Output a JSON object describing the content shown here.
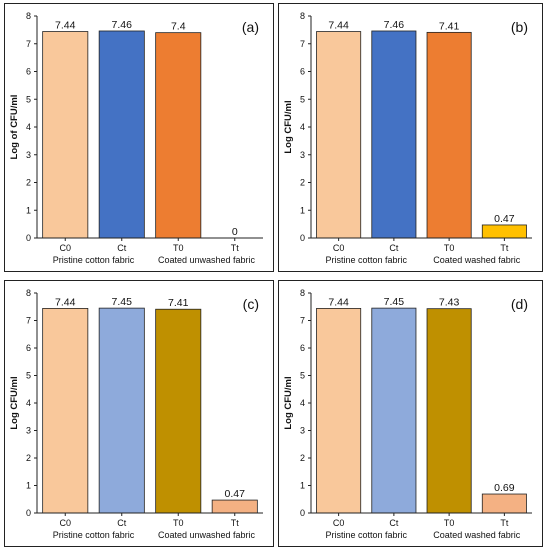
{
  "chart_data": [
    {
      "type": "bar",
      "panel_label": "(a)",
      "ylabel": "Log of CFU/ml",
      "categories": [
        "C0",
        "Ct",
        "T0",
        "Tt"
      ],
      "values": [
        7.44,
        7.46,
        7.4,
        0
      ],
      "value_labels": [
        "7.44",
        "7.46",
        "7.4",
        "0"
      ],
      "colors": [
        "#f9c89b",
        "#4472c4",
        "#ed7d31",
        "#ed7d31"
      ],
      "ylim": [
        0,
        8
      ],
      "yticks": [
        "0",
        "1",
        "2",
        "3",
        "4",
        "5",
        "6",
        "7",
        "8"
      ],
      "group_labels": [
        "Pristine cotton fabric",
        "Coated unwashed fabric"
      ],
      "grid": false
    },
    {
      "type": "bar",
      "panel_label": "(b)",
      "ylabel": "Log CFU/ml",
      "categories": [
        "C0",
        "Ct",
        "T0",
        "Tt"
      ],
      "values": [
        7.44,
        7.46,
        7.41,
        0.47
      ],
      "value_labels": [
        "7.44",
        "7.46",
        "7.41",
        "0.47"
      ],
      "colors": [
        "#f9c89b",
        "#4472c4",
        "#ed7d31",
        "#ffc000"
      ],
      "ylim": [
        0,
        8
      ],
      "yticks": [
        "0",
        "1",
        "2",
        "3",
        "4",
        "5",
        "6",
        "7",
        "8"
      ],
      "group_labels": [
        "Pristine cotton fabric",
        "Coated washed fabric"
      ],
      "grid": false
    },
    {
      "type": "bar",
      "panel_label": "(c)",
      "ylabel": "Log CFU/ml",
      "categories": [
        "C0",
        "Ct",
        "T0",
        "Tt"
      ],
      "values": [
        7.44,
        7.45,
        7.41,
        0.47
      ],
      "value_labels": [
        "7.44",
        "7.45",
        "7.41",
        "0.47"
      ],
      "colors": [
        "#f9c89b",
        "#8eaadb",
        "#bf9000",
        "#f4b183"
      ],
      "ylim": [
        0,
        8
      ],
      "yticks": [
        "0",
        "1",
        "2",
        "3",
        "4",
        "5",
        "6",
        "7",
        "8"
      ],
      "group_labels": [
        "Pristine cotton fabric",
        "Coated unwashed fabric"
      ],
      "grid": false
    },
    {
      "type": "bar",
      "panel_label": "(d)",
      "ylabel": "Log CFU/ml",
      "categories": [
        "C0",
        "Ct",
        "T0",
        "Tt"
      ],
      "values": [
        7.44,
        7.45,
        7.43,
        0.69
      ],
      "value_labels": [
        "7.44",
        "7.45",
        "7.43",
        "0.69"
      ],
      "colors": [
        "#f9c89b",
        "#8eaadb",
        "#bf9000",
        "#f4b183"
      ],
      "ylim": [
        0,
        8
      ],
      "yticks": [
        "0",
        "1",
        "2",
        "3",
        "4",
        "5",
        "6",
        "7",
        "8"
      ],
      "group_labels": [
        "Pristine cotton fabric",
        "Coated washed fabric"
      ],
      "grid": false
    }
  ]
}
